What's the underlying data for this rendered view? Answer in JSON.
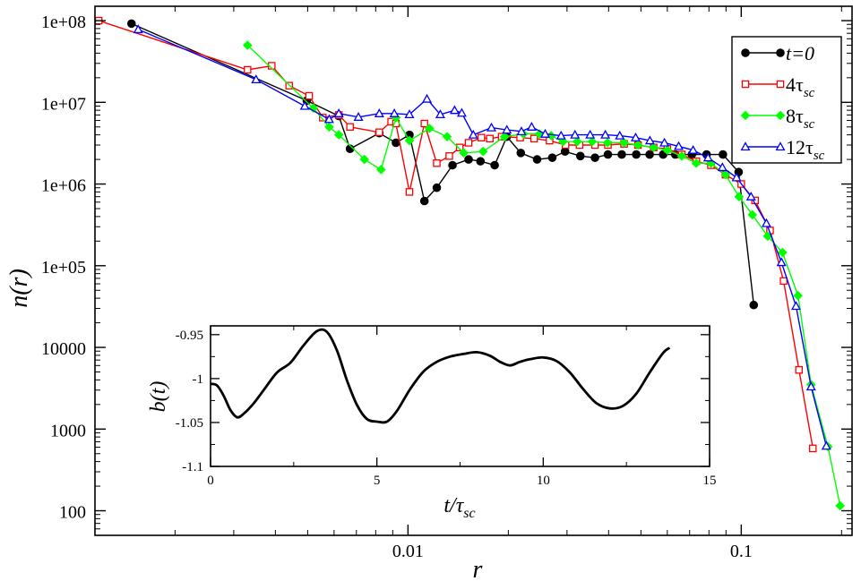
{
  "chart_data": [
    {
      "type": "line",
      "title": "",
      "xlabel": "r",
      "ylabel": "n(r)",
      "xscale": "log",
      "yscale": "log",
      "xlim": [
        0.00115,
        0.215
      ],
      "ylim": [
        50,
        150000000
      ],
      "x_ticks": [
        0.01,
        0.1
      ],
      "x_tick_labels": [
        "0.01",
        "0.1"
      ],
      "y_ticks": [
        100,
        1000,
        10000,
        100000,
        1000000,
        10000000,
        100000000
      ],
      "y_tick_labels": [
        "100",
        "1000",
        "10000",
        "1e+05",
        "1e+06",
        "1e+07",
        "1e+08"
      ],
      "legend": {
        "placement": "top-right"
      },
      "series": [
        {
          "name": "t=0",
          "label_main": "t=0",
          "label_sub": "",
          "italic": true,
          "color": "#000000",
          "marker": "circle-filled",
          "points": [
            [
              0.00148,
              92000000
            ],
            [
              0.00497,
              10500000
            ],
            [
              0.0062,
              6800000
            ],
            [
              0.0067,
              2700000
            ],
            [
              0.0082,
              4200000
            ],
            [
              0.0092,
              3200000
            ],
            [
              0.0101,
              4000000
            ],
            [
              0.0112,
              620000
            ],
            [
              0.0122,
              900000
            ],
            [
              0.0136,
              1700000
            ],
            [
              0.0152,
              2000000
            ],
            [
              0.0165,
              1900000
            ],
            [
              0.0182,
              1700000
            ],
            [
              0.0198,
              3800000
            ],
            [
              0.0218,
              2400000
            ],
            [
              0.0244,
              2000000
            ],
            [
              0.0271,
              2100000
            ],
            [
              0.0296,
              2500000
            ],
            [
              0.0329,
              2200000
            ],
            [
              0.0364,
              2100000
            ],
            [
              0.0398,
              2300000
            ],
            [
              0.0438,
              2300000
            ],
            [
              0.0484,
              2300000
            ],
            [
              0.0531,
              2300000
            ],
            [
              0.0583,
              2300000
            ],
            [
              0.0634,
              2300000
            ],
            [
              0.0711,
              2300000
            ],
            [
              0.0787,
              2300000
            ],
            [
              0.0881,
              2300000
            ],
            [
              0.0982,
              1400000
            ],
            [
              0.109,
              33000
            ]
          ]
        },
        {
          "name": "4τsc",
          "label_main": "4τ",
          "label_sub": "sc",
          "italic": false,
          "color": "#ff0000",
          "marker": "square-open",
          "points": [
            [
              0.00118,
              100000000
            ],
            [
              0.0033,
              25000000
            ],
            [
              0.0039,
              28000000
            ],
            [
              0.0044,
              16000000
            ],
            [
              0.00505,
              12000000
            ],
            [
              0.00555,
              6500000
            ],
            [
              0.0062,
              7000000
            ],
            [
              0.0067,
              5000000
            ],
            [
              0.0082,
              4300000
            ],
            [
              0.0089,
              5800000
            ],
            [
              0.0092,
              5500000
            ],
            [
              0.0101,
              800000
            ],
            [
              0.0112,
              5500000
            ],
            [
              0.0122,
              1800000
            ],
            [
              0.0133,
              2200000
            ],
            [
              0.0143,
              2800000
            ],
            [
              0.0152,
              3200000
            ],
            [
              0.0166,
              3700000
            ],
            [
              0.0176,
              3600000
            ],
            [
              0.0191,
              3800000
            ],
            [
              0.0217,
              3700000
            ],
            [
              0.0239,
              3600000
            ],
            [
              0.0266,
              3400000
            ],
            [
              0.0297,
              3000000
            ],
            [
              0.0327,
              3000000
            ],
            [
              0.0364,
              3000000
            ],
            [
              0.0398,
              3000000
            ],
            [
              0.0445,
              3100000
            ],
            [
              0.049,
              3000000
            ],
            [
              0.0546,
              2800000
            ],
            [
              0.06,
              2700000
            ],
            [
              0.0663,
              2300000
            ],
            [
              0.0733,
              1900000
            ],
            [
              0.0811,
              1700000
            ],
            [
              0.0897,
              1300000
            ],
            [
              0.1,
              1000000
            ],
            [
              0.11,
              630000
            ],
            [
              0.122,
              270000
            ],
            [
              0.134,
              65000
            ],
            [
              0.149,
              5300
            ],
            [
              0.164,
              580
            ]
          ]
        },
        {
          "name": "8τsc",
          "label_main": "8τ",
          "label_sub": "sc",
          "italic": false,
          "color": "#00ff00",
          "marker": "diamond-filled",
          "points": [
            [
              0.0033,
              50000000
            ],
            [
              0.0052,
              8500000
            ],
            [
              0.0058,
              5000000
            ],
            [
              0.0062,
              4000000
            ],
            [
              0.0074,
              2000000
            ],
            [
              0.0083,
              1500000
            ],
            [
              0.0092,
              6500000
            ],
            [
              0.0101,
              3400000
            ],
            [
              0.0116,
              4800000
            ],
            [
              0.0131,
              3800000
            ],
            [
              0.0147,
              2400000
            ],
            [
              0.0168,
              2500000
            ],
            [
              0.0195,
              3800000
            ],
            [
              0.0222,
              4100000
            ],
            [
              0.0248,
              4100000
            ],
            [
              0.0269,
              3900000
            ],
            [
              0.0292,
              3300000
            ],
            [
              0.0322,
              3300000
            ],
            [
              0.0357,
              3300000
            ],
            [
              0.0397,
              3200000
            ],
            [
              0.0445,
              3200000
            ],
            [
              0.049,
              3000000
            ],
            [
              0.0546,
              2800000
            ],
            [
              0.06,
              2600000
            ],
            [
              0.0663,
              2200000
            ],
            [
              0.0733,
              1800000
            ],
            [
              0.0811,
              1800000
            ],
            [
              0.0897,
              1300000
            ],
            [
              0.0985,
              700000
            ],
            [
              0.108,
              420000
            ],
            [
              0.12,
              230000
            ],
            [
              0.133,
              145000
            ],
            [
              0.148,
              43000
            ],
            [
              0.162,
              3500
            ],
            [
              0.182,
              610
            ],
            [
              0.198,
              115
            ]
          ]
        },
        {
          "name": "12τsc",
          "label_main": "12τ",
          "label_sub": "sc",
          "italic": false,
          "color": "#0000ff",
          "marker": "triangle-open",
          "points": [
            [
              0.00155,
              78000000
            ],
            [
              0.0035,
              19000000
            ],
            [
              0.0049,
              9000000
            ],
            [
              0.0058,
              6200000
            ],
            [
              0.0062,
              7300000
            ],
            [
              0.0071,
              6600000
            ],
            [
              0.0082,
              7300000
            ],
            [
              0.0091,
              7300000
            ],
            [
              0.0101,
              7100000
            ],
            [
              0.0114,
              11000000
            ],
            [
              0.0125,
              7100000
            ],
            [
              0.0138,
              8000000
            ],
            [
              0.0145,
              7400000
            ],
            [
              0.0157,
              4000000
            ],
            [
              0.0178,
              4900000
            ],
            [
              0.0198,
              4600000
            ],
            [
              0.0219,
              4400000
            ],
            [
              0.0235,
              5000000
            ],
            [
              0.0258,
              4100000
            ],
            [
              0.0288,
              3900000
            ],
            [
              0.0317,
              4000000
            ],
            [
              0.0352,
              4000000
            ],
            [
              0.0391,
              4000000
            ],
            [
              0.0432,
              3900000
            ],
            [
              0.0482,
              3700000
            ],
            [
              0.0532,
              3400000
            ],
            [
              0.0588,
              3200000
            ],
            [
              0.0649,
              2900000
            ],
            [
              0.0717,
              2600000
            ],
            [
              0.0795,
              2100000
            ],
            [
              0.0878,
              1600000
            ],
            [
              0.0968,
              1200000
            ],
            [
              0.107,
              700000
            ],
            [
              0.119,
              330000
            ],
            [
              0.132,
              110000
            ],
            [
              0.146,
              32000
            ],
            [
              0.162,
              3300
            ],
            [
              0.18,
              620
            ]
          ]
        }
      ]
    },
    {
      "type": "line",
      "title": "",
      "xlabel_main": "t/τ",
      "xlabel_sub": "sc",
      "ylabel": "b(t)",
      "xlim": [
        0,
        15
      ],
      "ylim": [
        -1.1,
        -0.94
      ],
      "x_ticks": [
        0,
        5,
        10,
        15
      ],
      "x_tick_labels": [
        "0",
        "5",
        "10",
        "15"
      ],
      "y_ticks": [
        -1.1,
        -1.05,
        -1.0,
        -0.95
      ],
      "y_tick_labels": [
        "-1.1",
        "-1.05",
        "-1",
        "-0.95"
      ],
      "series": [
        {
          "name": "b(t)",
          "color": "#000000",
          "x": [
            0,
            0.2,
            0.4,
            0.6,
            0.8,
            1.0,
            1.3,
            1.6,
            2.0,
            2.4,
            2.8,
            3.2,
            3.5,
            3.8,
            4.1,
            4.4,
            4.7,
            5.0,
            5.3,
            5.6,
            6.0,
            6.4,
            6.8,
            7.2,
            7.6,
            8.0,
            8.4,
            8.7,
            9.0,
            9.3,
            9.6,
            10.0,
            10.4,
            10.8,
            11.2,
            11.6,
            12.0,
            12.4,
            12.8,
            13.2,
            13.6,
            13.8
          ],
          "values": [
            -1.006,
            -1.008,
            -1.02,
            -1.036,
            -1.044,
            -1.04,
            -1.028,
            -1.013,
            -0.993,
            -0.982,
            -0.962,
            -0.946,
            -0.947,
            -0.968,
            -1.002,
            -1.03,
            -1.046,
            -1.049,
            -1.049,
            -1.037,
            -1.012,
            -0.992,
            -0.981,
            -0.975,
            -0.972,
            -0.97,
            -0.974,
            -0.981,
            -0.985,
            -0.981,
            -0.978,
            -0.976,
            -0.98,
            -0.993,
            -1.012,
            -1.028,
            -1.034,
            -1.031,
            -1.017,
            -0.993,
            -0.971,
            -0.965
          ]
        }
      ]
    }
  ]
}
